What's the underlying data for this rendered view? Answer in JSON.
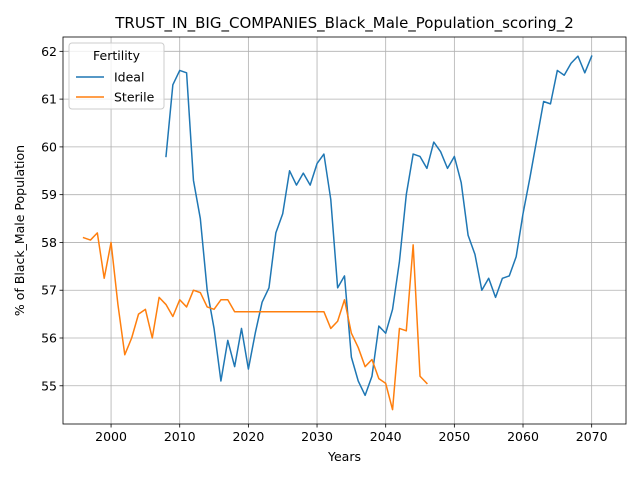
{
  "chart_data": {
    "type": "line",
    "title": "TRUST_IN_BIG_COMPANIES_Black_Male_Population_scoring_2",
    "xlabel": "Years",
    "ylabel": "% of Black_Male Population",
    "xlim": [
      1993,
      2075
    ],
    "ylim": [
      54.2,
      62.3
    ],
    "xticks": [
      2000,
      2010,
      2020,
      2030,
      2040,
      2050,
      2060,
      2070
    ],
    "yticks": [
      55,
      56,
      57,
      58,
      59,
      60,
      61,
      62
    ],
    "grid": true,
    "legend": {
      "title": "Fertility",
      "placement": "top-left"
    },
    "series": [
      {
        "name": "Ideal",
        "color": "#1f77b4",
        "points": [
          [
            2008,
            59.8
          ],
          [
            2009,
            61.3
          ],
          [
            2010,
            61.6
          ],
          [
            2011,
            61.55
          ],
          [
            2012,
            59.3
          ],
          [
            2013,
            58.5
          ],
          [
            2014,
            57.0
          ],
          [
            2015,
            56.2
          ],
          [
            2016,
            55.1
          ],
          [
            2017,
            55.95
          ],
          [
            2018,
            55.4
          ],
          [
            2019,
            56.2
          ],
          [
            2020,
            55.35
          ],
          [
            2021,
            56.1
          ],
          [
            2022,
            56.75
          ],
          [
            2023,
            57.05
          ],
          [
            2024,
            58.2
          ],
          [
            2025,
            58.6
          ],
          [
            2026,
            59.5
          ],
          [
            2027,
            59.2
          ],
          [
            2028,
            59.45
          ],
          [
            2029,
            59.2
          ],
          [
            2030,
            59.65
          ],
          [
            2031,
            59.85
          ],
          [
            2032,
            58.9
          ],
          [
            2033,
            57.05
          ],
          [
            2034,
            57.3
          ],
          [
            2035,
            55.6
          ],
          [
            2036,
            55.1
          ],
          [
            2037,
            54.8
          ],
          [
            2038,
            55.2
          ],
          [
            2039,
            56.25
          ],
          [
            2040,
            56.1
          ],
          [
            2041,
            56.6
          ],
          [
            2042,
            57.6
          ],
          [
            2043,
            59.0
          ],
          [
            2044,
            59.85
          ],
          [
            2045,
            59.8
          ],
          [
            2046,
            59.55
          ],
          [
            2047,
            60.1
          ],
          [
            2048,
            59.9
          ],
          [
            2049,
            59.55
          ],
          [
            2050,
            59.8
          ],
          [
            2051,
            59.25
          ],
          [
            2052,
            58.15
          ],
          [
            2053,
            57.75
          ],
          [
            2054,
            57.0
          ],
          [
            2055,
            57.25
          ],
          [
            2056,
            56.85
          ],
          [
            2057,
            57.25
          ],
          [
            2058,
            57.3
          ],
          [
            2059,
            57.7
          ],
          [
            2060,
            58.6
          ],
          [
            2061,
            59.35
          ],
          [
            2062,
            60.15
          ],
          [
            2063,
            60.95
          ],
          [
            2064,
            60.9
          ],
          [
            2065,
            61.6
          ],
          [
            2066,
            61.5
          ],
          [
            2067,
            61.75
          ],
          [
            2068,
            61.9
          ],
          [
            2069,
            61.55
          ],
          [
            2070,
            61.9
          ]
        ]
      },
      {
        "name": "Sterile",
        "color": "#ff7f0e",
        "points": [
          [
            1996,
            58.1
          ],
          [
            1997,
            58.05
          ],
          [
            1998,
            58.2
          ],
          [
            1999,
            57.25
          ],
          [
            2000,
            58.0
          ],
          [
            2001,
            56.7
          ],
          [
            2002,
            55.65
          ],
          [
            2003,
            56.0
          ],
          [
            2004,
            56.5
          ],
          [
            2005,
            56.6
          ],
          [
            2006,
            56.0
          ],
          [
            2007,
            56.85
          ],
          [
            2008,
            56.7
          ],
          [
            2009,
            56.45
          ],
          [
            2010,
            56.8
          ],
          [
            2011,
            56.65
          ],
          [
            2012,
            57.0
          ],
          [
            2013,
            56.95
          ],
          [
            2014,
            56.65
          ],
          [
            2015,
            56.6
          ],
          [
            2016,
            56.8
          ],
          [
            2017,
            56.8
          ],
          [
            2018,
            56.55
          ],
          [
            2019,
            56.55
          ],
          [
            2020,
            56.55
          ],
          [
            2021,
            56.55
          ],
          [
            2022,
            56.55
          ],
          [
            2023,
            56.55
          ],
          [
            2024,
            56.55
          ],
          [
            2025,
            56.55
          ],
          [
            2026,
            56.55
          ],
          [
            2027,
            56.55
          ],
          [
            2028,
            56.55
          ],
          [
            2029,
            56.55
          ],
          [
            2030,
            56.55
          ],
          [
            2031,
            56.55
          ],
          [
            2032,
            56.2
          ],
          [
            2033,
            56.35
          ],
          [
            2034,
            56.8
          ],
          [
            2035,
            56.1
          ],
          [
            2036,
            55.8
          ],
          [
            2037,
            55.4
          ],
          [
            2038,
            55.55
          ],
          [
            2039,
            55.15
          ],
          [
            2040,
            55.05
          ],
          [
            2041,
            54.5
          ],
          [
            2042,
            56.2
          ],
          [
            2043,
            56.15
          ],
          [
            2044,
            57.95
          ],
          [
            2045,
            55.2
          ],
          [
            2046,
            55.05
          ]
        ]
      }
    ]
  }
}
